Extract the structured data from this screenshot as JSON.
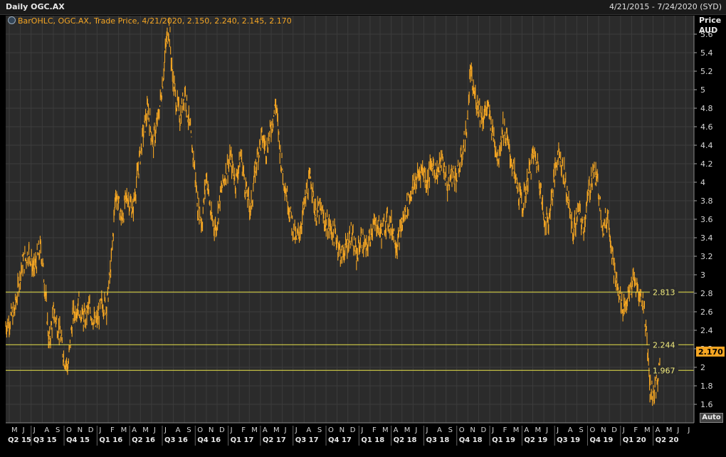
{
  "header": {
    "title": "Daily OGC.AX",
    "date_range": "4/21/2015 - 7/24/2020 (SYD)"
  },
  "legend": {
    "text": "BarOHLC, OGC.AX, Trade Price,  4/21/2020, 2.150, 2.240, 2.145, 2.170"
  },
  "axis": {
    "y_title_line1": "Price",
    "y_title_line2": "AUD",
    "auto_button": "Auto"
  },
  "colors": {
    "background": "#000000",
    "plot": "#2b2b2b",
    "grid": "#3c3c3c",
    "series": "#f5a623",
    "level_lines": "#e8e24a",
    "last_price_box": "#f5a623"
  },
  "chart_data": {
    "type": "bar",
    "title": "Daily OGC.AX",
    "xlabel": "",
    "ylabel": "Price AUD",
    "ylim": [
      1.4,
      5.8
    ],
    "y_ticks": [
      1.6,
      1.8,
      2,
      2.2,
      2.4,
      2.6,
      2.8,
      3,
      3.2,
      3.4,
      3.6,
      3.8,
      4,
      4.2,
      4.4,
      4.6,
      4.8,
      5,
      5.2,
      5.4,
      5.6
    ],
    "y_tick_labels": [
      "1.6",
      "1.8",
      "2",
      "2.2",
      "2.4",
      "2.6",
      "2.8",
      "3",
      "3.2",
      "3.4",
      "3.6",
      "3.8",
      "4",
      "4.2",
      "4.4",
      "4.6",
      "4.8",
      "5",
      "5.2",
      "5.4",
      "5.6"
    ],
    "x_range": [
      "2015-04-21",
      "2020-07-24"
    ],
    "month_labels": [
      "M",
      "J",
      "J",
      "A",
      "S",
      "O",
      "N",
      "D",
      "J",
      "F",
      "M",
      "A",
      "M",
      "J",
      "J",
      "A",
      "S",
      "O",
      "N",
      "D",
      "J",
      "F",
      "M",
      "A",
      "M",
      "J",
      "J",
      "A",
      "S",
      "O",
      "N",
      "D",
      "J",
      "F",
      "M",
      "A",
      "M",
      "J",
      "J",
      "A",
      "S",
      "O",
      "N",
      "D",
      "J",
      "F",
      "M",
      "A",
      "M",
      "J",
      "J",
      "A",
      "S",
      "O",
      "N",
      "D",
      "J",
      "F",
      "M",
      "A",
      "M",
      "J",
      "J"
    ],
    "quarter_labels": [
      "Q2 15",
      "Q3 15",
      "Q4 15",
      "Q1 16",
      "Q2 16",
      "Q3 16",
      "Q4 16",
      "Q1 17",
      "Q2 17",
      "Q3 17",
      "Q4 17",
      "Q1 18",
      "Q2 18",
      "Q3 18",
      "Q4 18",
      "Q1 19",
      "Q2 19",
      "Q3 19",
      "Q4 19",
      "Q1 20",
      "Q2 20"
    ],
    "series": [
      {
        "values": [
          [
            "2015-04-21",
            2.45
          ],
          [
            "2015-05-15",
            2.6
          ],
          [
            "2015-06-05",
            3.1
          ],
          [
            "2015-06-25",
            3.25
          ],
          [
            "2015-07-08",
            3.05
          ],
          [
            "2015-07-28",
            3.3
          ],
          [
            "2015-08-10",
            2.8
          ],
          [
            "2015-08-20",
            2.25
          ],
          [
            "2015-09-02",
            2.6
          ],
          [
            "2015-09-20",
            2.35
          ],
          [
            "2015-10-01",
            2.1
          ],
          [
            "2015-10-12",
            2.0
          ],
          [
            "2015-10-25",
            2.55
          ],
          [
            "2015-11-10",
            2.7
          ],
          [
            "2015-11-25",
            2.5
          ],
          [
            "2015-12-10",
            2.65
          ],
          [
            "2015-12-28",
            2.45
          ],
          [
            "2016-01-15",
            2.7
          ],
          [
            "2016-01-28",
            2.65
          ],
          [
            "2016-02-10",
            3.15
          ],
          [
            "2016-02-22",
            3.9
          ],
          [
            "2016-03-10",
            3.6
          ],
          [
            "2016-03-25",
            3.85
          ],
          [
            "2016-04-10",
            3.7
          ],
          [
            "2016-04-25",
            4.15
          ],
          [
            "2016-05-10",
            4.55
          ],
          [
            "2016-05-22",
            4.8
          ],
          [
            "2016-06-05",
            4.4
          ],
          [
            "2016-06-20",
            4.7
          ],
          [
            "2016-07-01",
            5.05
          ],
          [
            "2016-07-12",
            5.5
          ],
          [
            "2016-07-20",
            5.7
          ],
          [
            "2016-07-28",
            5.2
          ],
          [
            "2016-08-08",
            4.9
          ],
          [
            "2016-08-20",
            4.7
          ],
          [
            "2016-09-02",
            5.0
          ],
          [
            "2016-09-15",
            4.6
          ],
          [
            "2016-09-28",
            4.2
          ],
          [
            "2016-10-08",
            3.75
          ],
          [
            "2016-10-20",
            3.55
          ],
          [
            "2016-11-01",
            4.1
          ],
          [
            "2016-11-15",
            3.6
          ],
          [
            "2016-11-28",
            3.5
          ],
          [
            "2016-12-10",
            3.85
          ],
          [
            "2016-12-24",
            4.1
          ],
          [
            "2017-01-08",
            4.25
          ],
          [
            "2017-01-22",
            4.0
          ],
          [
            "2017-02-05",
            4.3
          ],
          [
            "2017-02-20",
            3.9
          ],
          [
            "2017-03-05",
            3.7
          ],
          [
            "2017-03-20",
            4.2
          ],
          [
            "2017-04-05",
            4.5
          ],
          [
            "2017-04-18",
            4.35
          ],
          [
            "2017-05-01",
            4.6
          ],
          [
            "2017-05-14",
            4.85
          ],
          [
            "2017-05-28",
            4.25
          ],
          [
            "2017-06-12",
            3.9
          ],
          [
            "2017-06-26",
            3.6
          ],
          [
            "2017-07-10",
            3.35
          ],
          [
            "2017-07-24",
            3.55
          ],
          [
            "2017-08-08",
            3.9
          ],
          [
            "2017-08-20",
            4.05
          ],
          [
            "2017-09-02",
            3.65
          ],
          [
            "2017-09-15",
            3.7
          ],
          [
            "2017-09-30",
            3.55
          ],
          [
            "2017-10-15",
            3.5
          ],
          [
            "2017-10-30",
            3.4
          ],
          [
            "2017-11-12",
            3.2
          ],
          [
            "2017-11-25",
            3.3
          ],
          [
            "2017-12-10",
            3.45
          ],
          [
            "2017-12-25",
            3.2
          ],
          [
            "2018-01-08",
            3.4
          ],
          [
            "2018-01-22",
            3.25
          ],
          [
            "2018-02-05",
            3.5
          ],
          [
            "2018-02-20",
            3.55
          ],
          [
            "2018-03-05",
            3.45
          ],
          [
            "2018-03-20",
            3.6
          ],
          [
            "2018-04-05",
            3.5
          ],
          [
            "2018-04-18",
            3.3
          ],
          [
            "2018-05-01",
            3.55
          ],
          [
            "2018-05-15",
            3.75
          ],
          [
            "2018-05-28",
            3.9
          ],
          [
            "2018-06-12",
            4.05
          ],
          [
            "2018-06-26",
            4.15
          ],
          [
            "2018-07-10",
            4.0
          ],
          [
            "2018-07-24",
            4.2
          ],
          [
            "2018-08-08",
            4.1
          ],
          [
            "2018-08-22",
            4.25
          ],
          [
            "2018-09-05",
            3.95
          ],
          [
            "2018-09-18",
            4.1
          ],
          [
            "2018-10-02",
            4.05
          ],
          [
            "2018-10-16",
            4.3
          ],
          [
            "2018-10-30",
            4.6
          ],
          [
            "2018-11-08",
            5.2
          ],
          [
            "2018-11-15",
            5.0
          ],
          [
            "2018-11-28",
            4.85
          ],
          [
            "2018-12-12",
            4.7
          ],
          [
            "2018-12-26",
            4.8
          ],
          [
            "2019-01-10",
            4.55
          ],
          [
            "2019-01-24",
            4.25
          ],
          [
            "2019-02-07",
            4.6
          ],
          [
            "2019-02-21",
            4.4
          ],
          [
            "2019-03-07",
            4.15
          ],
          [
            "2019-03-21",
            3.9
          ],
          [
            "2019-04-04",
            3.75
          ],
          [
            "2019-04-18",
            4.05
          ],
          [
            "2019-05-02",
            4.3
          ],
          [
            "2019-05-16",
            4.2
          ],
          [
            "2019-05-30",
            3.65
          ],
          [
            "2019-06-13",
            3.55
          ],
          [
            "2019-06-27",
            3.95
          ],
          [
            "2019-07-11",
            4.35
          ],
          [
            "2019-07-25",
            4.15
          ],
          [
            "2019-08-08",
            3.8
          ],
          [
            "2019-08-22",
            3.45
          ],
          [
            "2019-09-05",
            3.7
          ],
          [
            "2019-09-19",
            3.5
          ],
          [
            "2019-10-03",
            3.85
          ],
          [
            "2019-10-17",
            4.15
          ],
          [
            "2019-10-31",
            3.95
          ],
          [
            "2019-11-14",
            3.5
          ],
          [
            "2019-11-28",
            3.65
          ],
          [
            "2019-12-12",
            3.1
          ],
          [
            "2019-12-26",
            2.8
          ],
          [
            "2020-01-09",
            2.65
          ],
          [
            "2020-01-23",
            2.75
          ],
          [
            "2020-02-06",
            2.95
          ],
          [
            "2020-02-20",
            2.8
          ],
          [
            "2020-03-05",
            2.7
          ],
          [
            "2020-03-15",
            2.3
          ],
          [
            "2020-03-23",
            1.8
          ],
          [
            "2020-04-02",
            1.7
          ],
          [
            "2020-04-14",
            1.85
          ],
          [
            "2020-04-21",
            2.17
          ]
        ]
      }
    ],
    "levels": [
      {
        "value": 2.813,
        "label": "2.813"
      },
      {
        "value": 2.244,
        "label": "2.244"
      },
      {
        "value": 1.967,
        "label": "1.967"
      }
    ],
    "last_price": {
      "value": 2.17,
      "label": "2.170"
    },
    "grid": true
  }
}
